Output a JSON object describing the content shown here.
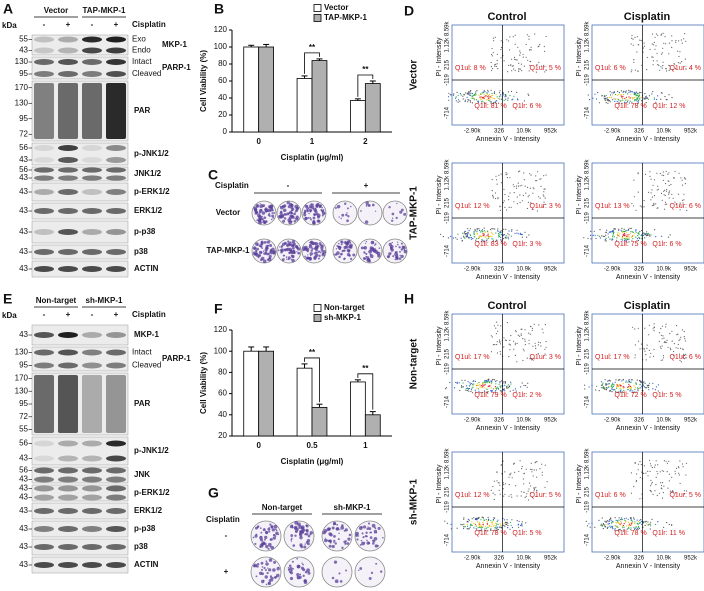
{
  "chart_data": [
    {
      "type": "bar",
      "panel": "B",
      "x_label": "Cisplatin (μg/ml)",
      "y_label": "Cell Viability (%)",
      "categories": [
        "0",
        "1",
        "2"
      ],
      "series": [
        {
          "name": "Vector",
          "color": "#ffffff",
          "values": [
            100,
            63,
            37
          ],
          "errors": [
            2,
            3,
            2
          ]
        },
        {
          "name": "TAP-MKP-1",
          "color": "#b0b0b0",
          "values": [
            100,
            84,
            57
          ],
          "errors": [
            3,
            2,
            3
          ]
        }
      ],
      "ylim": [
        0,
        120
      ],
      "yticks": [
        0,
        20,
        40,
        60,
        80,
        100,
        120
      ],
      "grid": false,
      "legend": "upper right",
      "annotations": [
        "**",
        "**"
      ]
    },
    {
      "type": "bar",
      "panel": "F",
      "x_label": "Cisplatin (μg/ml)",
      "y_label": "Cell Viability (%)",
      "categories": [
        "0",
        "0.5",
        "1"
      ],
      "series": [
        {
          "name": "Non-target",
          "color": "#ffffff",
          "values": [
            100,
            84,
            71
          ],
          "errors": [
            4,
            4,
            2
          ]
        },
        {
          "name": "sh-MKP-1",
          "color": "#b0b0b0",
          "values": [
            100,
            47,
            40
          ],
          "errors": [
            4,
            3,
            3
          ]
        }
      ],
      "ylim": [
        20,
        120
      ],
      "yticks": [
        20,
        40,
        60,
        80,
        100,
        120
      ],
      "grid": false,
      "legend": "upper right",
      "annotations": [
        "**",
        "**"
      ]
    }
  ],
  "panel_a": {
    "letter": "A",
    "kda": "kDa",
    "groups": [
      "Vector",
      "TAP-MKP-1"
    ],
    "treatment": "Cisplatin",
    "lanes": [
      "-",
      "+",
      "-",
      "+"
    ],
    "rows": [
      {
        "kda": [
          "55",
          "43"
        ],
        "bands": [
          "Exo",
          "Endo"
        ],
        "protein": "MKP-1"
      },
      {
        "kda": [
          "130",
          "95"
        ],
        "bands": [
          "Intact",
          "Cleaved"
        ],
        "protein": "PARP-1"
      },
      {
        "kda": [
          "170",
          "130",
          "95",
          "72"
        ],
        "protein": "PAR"
      },
      {
        "kda": [
          "56",
          "43"
        ],
        "protein": "p-JNK1/2"
      },
      {
        "kda": [
          "56",
          "43"
        ],
        "protein": "JNK1/2"
      },
      {
        "kda": [
          "43"
        ],
        "protein": "p-ERK1/2"
      },
      {
        "kda": [
          "43"
        ],
        "protein": "ERK1/2"
      },
      {
        "kda": [
          "43"
        ],
        "protein": "p-p38"
      },
      {
        "kda": [
          "43"
        ],
        "protein": "p38"
      },
      {
        "kda": [
          "43"
        ],
        "protein": "ACTIN"
      }
    ]
  },
  "panel_e": {
    "letter": "E",
    "kda": "kDa",
    "groups": [
      "Non-target",
      "sh-MKP-1"
    ],
    "treatment": "Cisplatin",
    "lanes": [
      "-",
      "+",
      "-",
      "+"
    ],
    "rows": [
      {
        "kda": [
          "43"
        ],
        "protein": "MKP-1"
      },
      {
        "kda": [
          "130",
          "95"
        ],
        "bands": [
          "Intact",
          "Cleaved"
        ],
        "protein": "PARP-1"
      },
      {
        "kda": [
          "170",
          "130",
          "95",
          "72",
          "55"
        ],
        "protein": "PAR"
      },
      {
        "kda": [
          "56",
          "43"
        ],
        "protein": "p-JNK1/2"
      },
      {
        "kda": [
          "56",
          "43"
        ],
        "protein": "JNK"
      },
      {
        "kda": [
          "43",
          "43"
        ],
        "protein": "p-ERK1/2"
      },
      {
        "kda": [
          "43"
        ],
        "protein": "ERK1/2"
      },
      {
        "kda": [
          "43"
        ],
        "protein": "p-p38"
      },
      {
        "kda": [
          "43"
        ],
        "protein": "p38"
      },
      {
        "kda": [
          "43"
        ],
        "protein": "ACTIN"
      }
    ]
  },
  "panel_c": {
    "letter": "C",
    "treatment": "Cisplatin",
    "conditions": [
      "-",
      "+"
    ],
    "rows": [
      "Vector",
      "TAP-MKP-1"
    ]
  },
  "panel_g": {
    "letter": "G",
    "treatment": "Cisplatin",
    "columns": [
      "Non-target",
      "sh-MKP-1"
    ],
    "rows": [
      "-",
      "+"
    ]
  },
  "panel_d": {
    "letter": "D",
    "columns": [
      "Control",
      "Cisplatin"
    ],
    "rows": [
      "Vector",
      "TAP-MKP-1"
    ],
    "x_axis": "Annexin V - Intensity",
    "y_axis": "PI - Intensity",
    "xticks": [
      "-2.90k",
      "326",
      "10.9k",
      "952k"
    ],
    "yticks": [
      "-714",
      "-119",
      "215",
      "1.12k 8.59k"
    ],
    "plots": [
      [
        {
          "ul": "Q1ul: 8 %",
          "ur": "Q1ur: 5 %",
          "ll": "Q1ll: 81 %",
          "lr": "Q1lr: 6 %"
        },
        {
          "ul": "Q1ul: 6 %",
          "ur": "Q1ur: 4 %",
          "ll": "Q1ll: 78 %",
          "lr": "Q1lr: 12 %"
        }
      ],
      [
        {
          "ul": "Q1ul: 12 %",
          "ur": "Q1ur: 3 %",
          "ll": "Q1ll: 83 %",
          "lr": "Q1lr: 3 %"
        },
        {
          "ul": "Q1ul: 13 %",
          "ur": "Q1ur: 6 %",
          "ll": "Q1ll: 75 %",
          "lr": "Q1lr: 6 %"
        }
      ]
    ]
  },
  "panel_h": {
    "letter": "H",
    "columns": [
      "Control",
      "Cisplatin"
    ],
    "rows": [
      "Non-target",
      "sh-MKP-1"
    ],
    "x_axis": "Annexin V - Intensity",
    "y_axis": "PI - Intensity",
    "xticks": [
      "-2.90k",
      "326",
      "10.9k",
      "952k"
    ],
    "yticks": [
      "-714",
      "-119",
      "215",
      "1.12k 8.59k"
    ],
    "plots": [
      [
        {
          "ul": "Q1ul: 17 %",
          "ur": "Q1ur: 3 %",
          "ll": "Q1ll: 79 %",
          "lr": "Q1lr: 2 %"
        },
        {
          "ul": "Q1ul: 17 %",
          "ur": "Q1ur: 6 %",
          "ll": "Q1ll: 72 %",
          "lr": "Q1lr: 5 %"
        }
      ],
      [
        {
          "ul": "Q1ul: 12 %",
          "ur": "Q1ur: 5 %",
          "ll": "Q1ll: 78 %",
          "lr": "Q1lr: 5 %"
        },
        {
          "ul": "Q1ul: 6 %",
          "ur": "Q1ur: 5 %",
          "ll": "Q1ll: 78 %",
          "lr": "Q1lr: 11 %"
        }
      ]
    ]
  }
}
